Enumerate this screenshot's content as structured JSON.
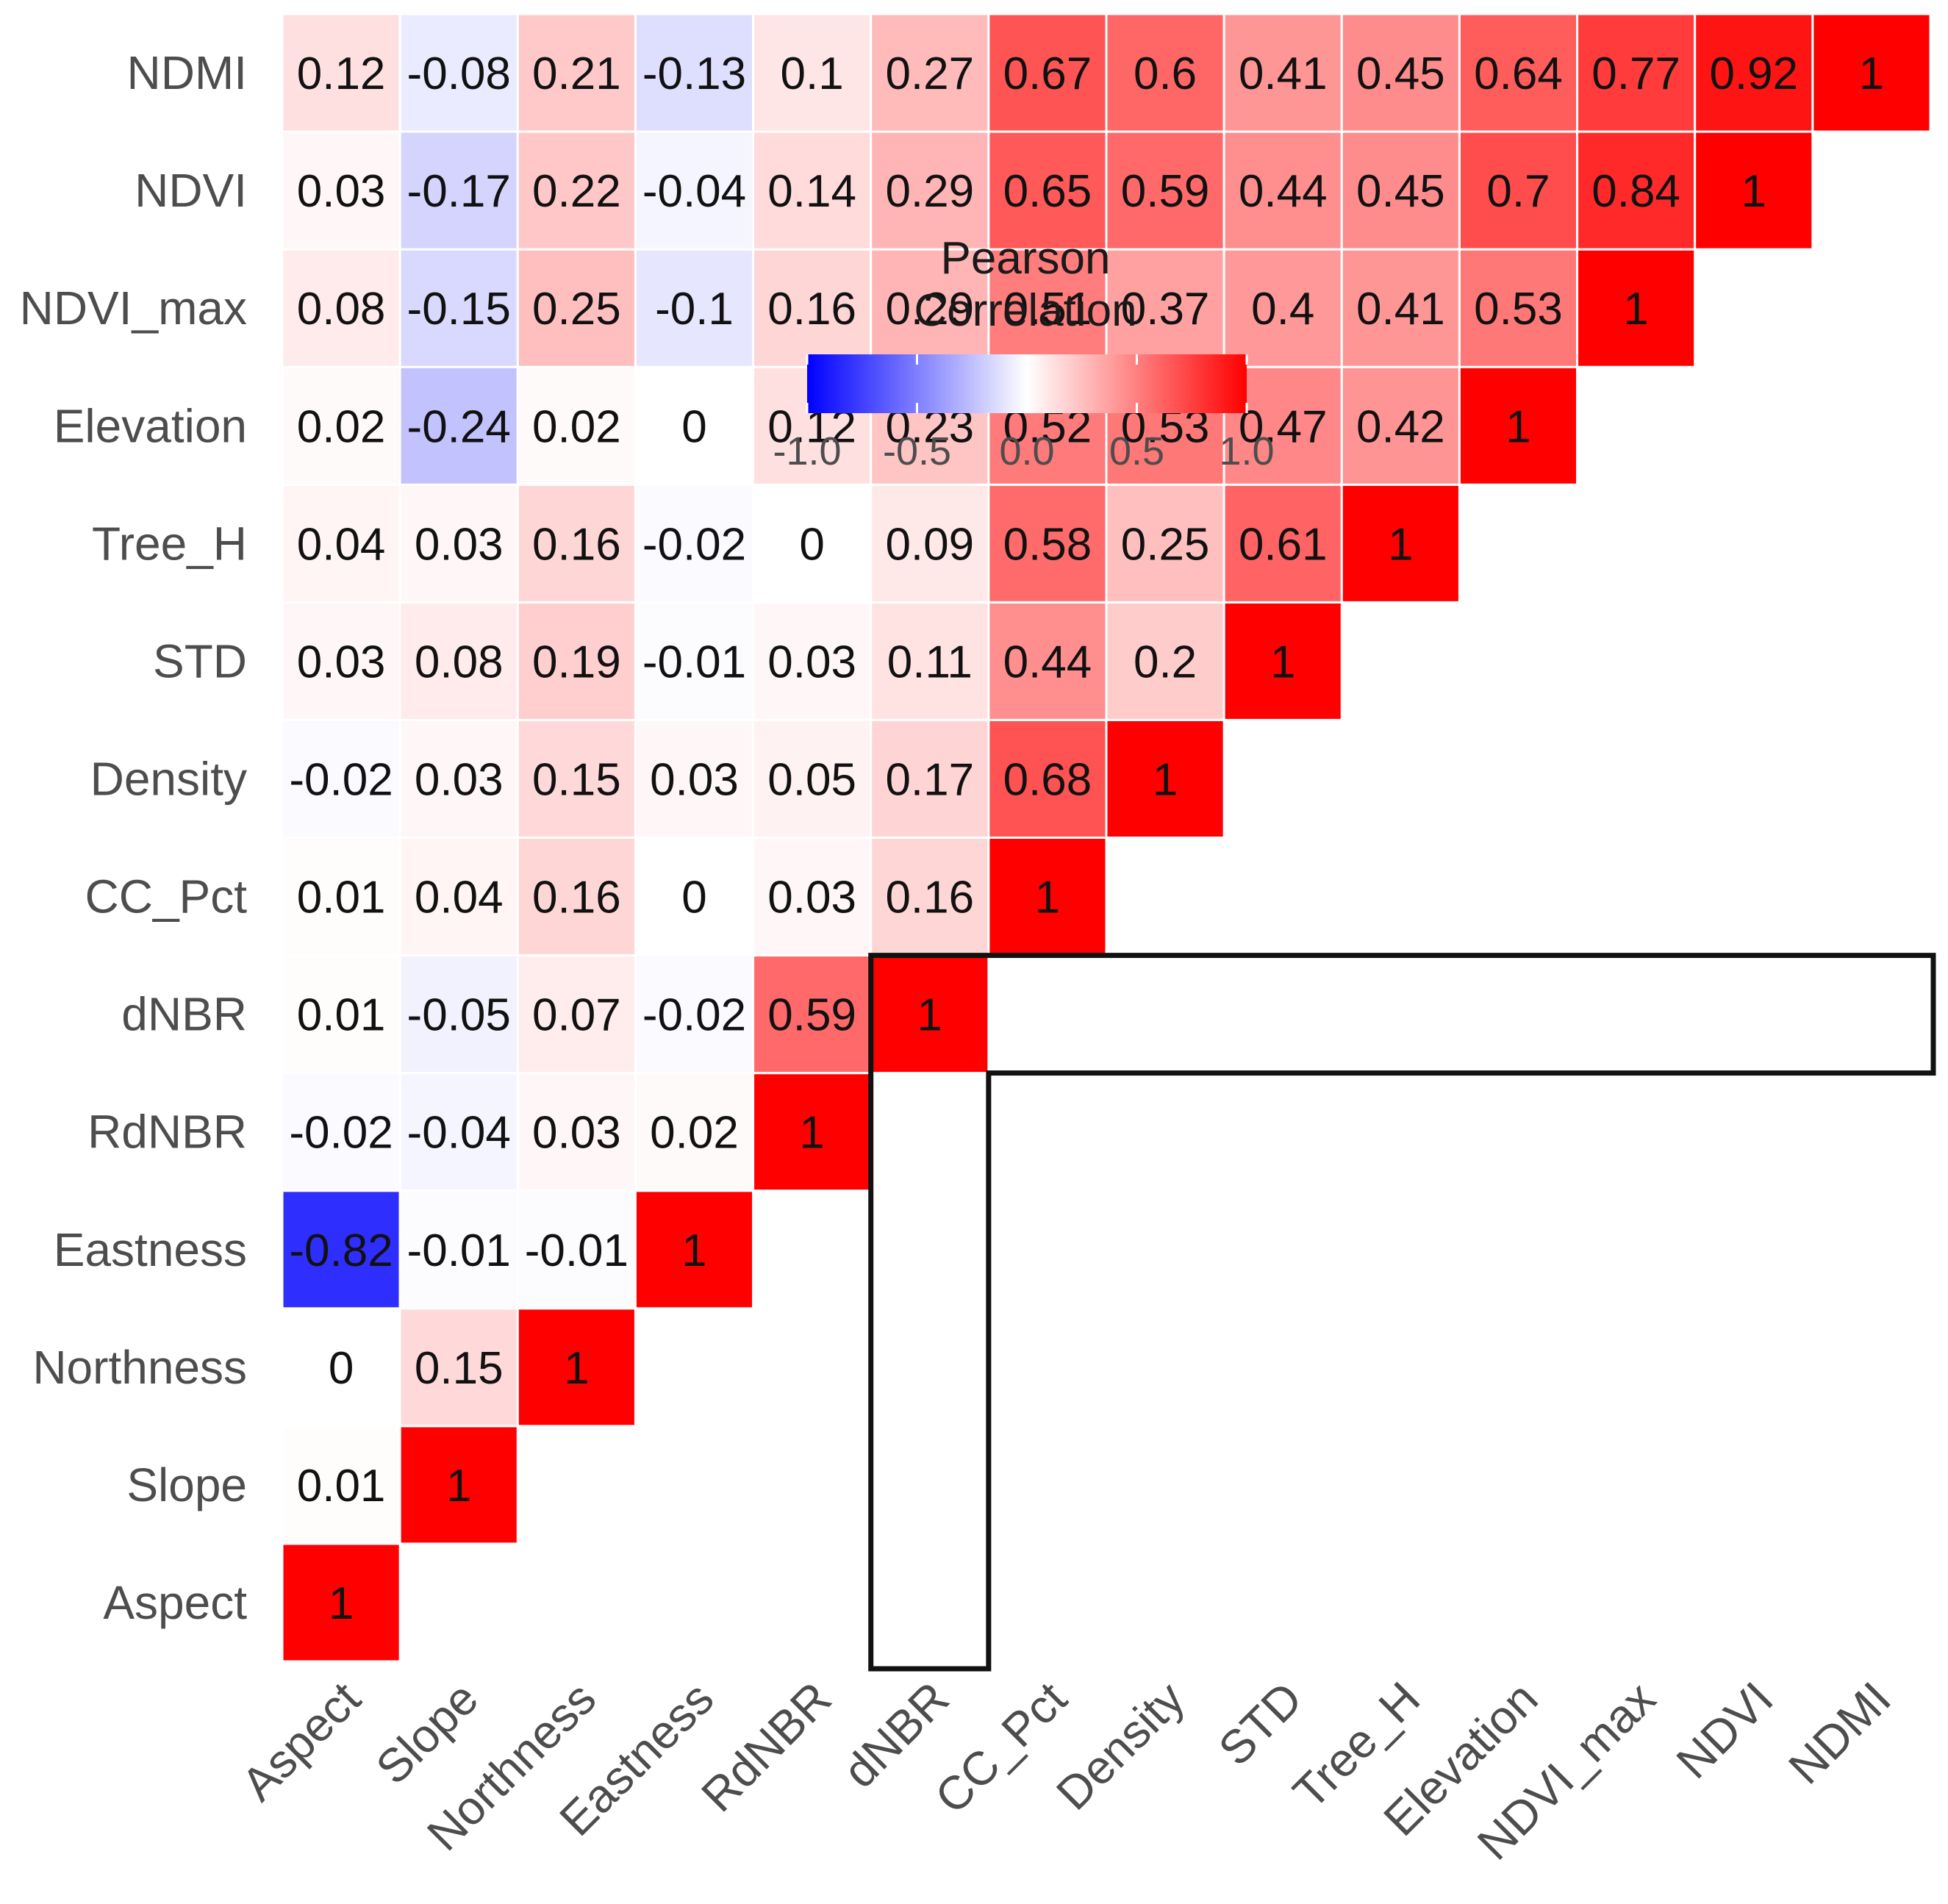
{
  "chart_data": {
    "type": "heatmap",
    "title": "",
    "xlabel": "",
    "ylabel": "",
    "variables": [
      "Aspect",
      "Slope",
      "Northness",
      "Eastness",
      "RdNBR",
      "dNBR",
      "CC_Pct",
      "Density",
      "STD",
      "Tree_H",
      "Elevation",
      "NDVI_max",
      "NDVI",
      "NDMI"
    ],
    "lower_triangle_only": true,
    "matrix": [
      [
        1
      ],
      [
        0.01,
        1
      ],
      [
        0,
        0.15,
        1
      ],
      [
        -0.82,
        -0.01,
        -0.01,
        1
      ],
      [
        -0.02,
        -0.04,
        0.03,
        0.02,
        1
      ],
      [
        0.01,
        -0.05,
        0.07,
        -0.02,
        0.59,
        1
      ],
      [
        0.01,
        0.04,
        0.16,
        0,
        0.03,
        0.16,
        1
      ],
      [
        -0.02,
        0.03,
        0.15,
        0.03,
        0.05,
        0.17,
        0.68,
        1
      ],
      [
        0.03,
        0.08,
        0.19,
        -0.01,
        0.03,
        0.11,
        0.44,
        0.2,
        1
      ],
      [
        0.04,
        0.03,
        0.16,
        -0.02,
        0,
        0.09,
        0.58,
        0.25,
        0.61,
        1
      ],
      [
        0.02,
        -0.24,
        0.02,
        0,
        0.12,
        0.23,
        0.52,
        0.53,
        0.47,
        0.42,
        1
      ],
      [
        0.08,
        -0.15,
        0.25,
        -0.1,
        0.16,
        0.29,
        0.51,
        0.37,
        0.4,
        0.41,
        0.53,
        1
      ],
      [
        0.03,
        -0.17,
        0.22,
        -0.04,
        0.14,
        0.29,
        0.65,
        0.59,
        0.44,
        0.45,
        0.7,
        0.84,
        1
      ],
      [
        0.12,
        -0.08,
        0.21,
        -0.13,
        0.1,
        0.27,
        0.67,
        0.6,
        0.41,
        0.45,
        0.64,
        0.77,
        0.92,
        1
      ]
    ],
    "highlight_variable": "dNBR",
    "legend": {
      "title_lines": [
        "Pearson",
        "Correlation"
      ],
      "ticks": [
        "-1.0",
        "-0.5",
        "0.0",
        "0.5",
        "1.0"
      ],
      "range": [
        -1,
        1
      ],
      "colors": {
        "low": "#0000ff",
        "mid": "#ffffff",
        "high": "#ff0000"
      },
      "placement": "top-center"
    }
  }
}
